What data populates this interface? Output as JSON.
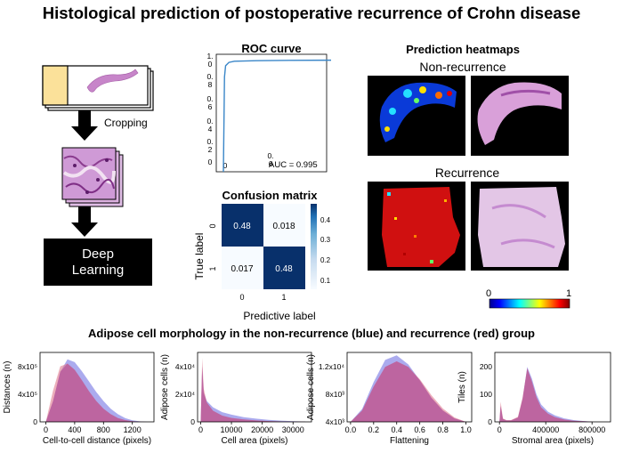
{
  "figure": {
    "title": "Histological prediction of postoperative recurrence of Crohn disease"
  },
  "pipeline": {
    "cropping_label": "Cropping",
    "model_label_line1": "Deep",
    "model_label_line2": "Learning"
  },
  "roc": {
    "title": "ROC curve",
    "auc_text": "AUC = 0.995",
    "y_ticks": [
      "1.\n0",
      "0.\n8",
      "0.\n6",
      "0.\n4",
      "0.\n2",
      "0"
    ],
    "x_ticks": [
      "0",
      "0.\n6"
    ]
  },
  "confusion": {
    "title": "Confusion matrix",
    "cells": [
      [
        "0.48",
        "0.018"
      ],
      [
        "0.017",
        "0.48"
      ]
    ],
    "row_labels": [
      "0",
      "1"
    ],
    "col_labels": [
      "0",
      "1"
    ],
    "ylabel": "True label",
    "xlabel": "Predictive label",
    "colorbar_ticks": [
      "0.4",
      "0.3",
      "0.2",
      "0.1"
    ]
  },
  "heatmaps": {
    "title": "Prediction heatmaps",
    "group1": "Non-recurrence",
    "group2": "Recurrence",
    "scale_min": "0",
    "scale_max": "1"
  },
  "morphology": {
    "title": "Adipose cell morphology in the non-recurrence (blue) and recurrence (red) group",
    "series_colors": {
      "non_recurrence": "#8f8fe8",
      "recurrence": "#e07a8e",
      "overlap": "#b3468f"
    }
  },
  "chart_data": [
    {
      "type": "line",
      "title": "ROC curve",
      "xlabel": "",
      "ylabel": "",
      "x": [
        0,
        0.01,
        0.02,
        0.05,
        0.1,
        0.3,
        0.6,
        1.0
      ],
      "y": [
        0,
        0.85,
        0.95,
        0.98,
        0.99,
        0.995,
        0.998,
        1.0
      ],
      "xlim": [
        0,
        1
      ],
      "ylim": [
        0,
        1
      ],
      "annotation": "AUC = 0.995",
      "color": "#3a86c8"
    },
    {
      "type": "heatmap",
      "title": "Confusion matrix",
      "xlabel": "Predictive label",
      "ylabel": "True label",
      "rows": [
        "0",
        "1"
      ],
      "cols": [
        "0",
        "1"
      ],
      "values": [
        [
          0.48,
          0.018
        ],
        [
          0.017,
          0.48
        ]
      ],
      "colormap": "Blues"
    },
    {
      "type": "area",
      "xlabel": "Cell-to-cell distance (pixels)",
      "ylabel": "Distances (n)",
      "x_ticks": [
        "0",
        "400",
        "800",
        "1200"
      ],
      "y_ticks": [
        "8x10⁵",
        "4x10⁵",
        "0"
      ],
      "xlim": [
        -80,
        1500
      ],
      "ylim": [
        0,
        1000000
      ],
      "series": [
        {
          "color": "#8f8fe8",
          "x": [
            0,
            100,
            200,
            300,
            400,
            500,
            600,
            700,
            800,
            900,
            1000,
            1100,
            1200,
            1300,
            1400
          ],
          "values": [
            0,
            300000,
            720000,
            900000,
            860000,
            730000,
            580000,
            430000,
            300000,
            190000,
            110000,
            55000,
            22000,
            8000,
            0
          ]
        },
        {
          "color": "#e07a8e",
          "x": [
            0,
            100,
            200,
            300,
            400,
            500,
            600,
            700,
            800,
            900,
            1000,
            1100,
            1200,
            1300,
            1400
          ],
          "values": [
            0,
            450000,
            800000,
            840000,
            750000,
            600000,
            440000,
            300000,
            190000,
            110000,
            55000,
            25000,
            9000,
            3000,
            0
          ]
        }
      ]
    },
    {
      "type": "area",
      "xlabel": "Cell area (pixels)",
      "ylabel": "Adipose cells (n)",
      "x_ticks": [
        "0",
        "10000",
        "20000",
        "30000"
      ],
      "y_ticks": [
        "4x10⁴",
        "2x10⁴",
        "0"
      ],
      "xlim": [
        -1000,
        36000
      ],
      "ylim": [
        0,
        50000
      ],
      "series": [
        {
          "color": "#8f8fe8",
          "x": [
            0,
            500,
            1000,
            2000,
            4000,
            7000,
            10000,
            14000,
            18000,
            22000,
            26000,
            30000,
            34000
          ],
          "values": [
            0,
            40000,
            21000,
            15000,
            10500,
            7000,
            5200,
            3400,
            2300,
            1500,
            900,
            500,
            250
          ]
        },
        {
          "color": "#e07a8e",
          "x": [
            0,
            500,
            1000,
            2000,
            4000,
            7000,
            10000,
            14000,
            18000,
            22000,
            26000,
            30000,
            34000
          ],
          "values": [
            0,
            46000,
            24000,
            14000,
            8000,
            4500,
            2800,
            1700,
            1000,
            600,
            350,
            200,
            100
          ]
        }
      ]
    },
    {
      "type": "area",
      "xlabel": "Flattening",
      "ylabel": "Adipose cells (n)",
      "x_ticks": [
        "0.0",
        "0.2",
        "0.4",
        "0.6",
        "0.8",
        "1.0"
      ],
      "y_ticks": [
        "1.2x10⁴",
        "8x10³",
        "4x10³"
      ],
      "xlim": [
        -0.03,
        1.05
      ],
      "ylim": [
        0,
        14000
      ],
      "series": [
        {
          "color": "#8f8fe8",
          "x": [
            0,
            0.1,
            0.2,
            0.3,
            0.4,
            0.5,
            0.6,
            0.7,
            0.8,
            0.9,
            1.0
          ],
          "values": [
            0,
            2600,
            8000,
            12500,
            13400,
            11600,
            8400,
            4900,
            2300,
            700,
            0
          ]
        },
        {
          "color": "#e07a8e",
          "x": [
            0,
            0.1,
            0.2,
            0.3,
            0.4,
            0.5,
            0.6,
            0.7,
            0.8,
            0.9,
            1.0
          ],
          "values": [
            0,
            2300,
            7100,
            11100,
            12200,
            11100,
            8600,
            5400,
            2700,
            900,
            0
          ]
        }
      ]
    },
    {
      "type": "area",
      "xlabel": "Stromal area (pixels)",
      "ylabel": "Tiles (n)",
      "x_ticks": [
        "0",
        "400000",
        "800000"
      ],
      "y_ticks": [
        "200",
        "100",
        "0"
      ],
      "xlim": [
        -40000,
        960000
      ],
      "ylim": [
        0,
        240
      ],
      "series": [
        {
          "color": "#8f8fe8",
          "x": [
            0,
            10000,
            30000,
            60000,
            100000,
            160000,
            200000,
            240000,
            280000,
            320000,
            360000,
            420000,
            480000,
            560000,
            640000,
            720000,
            800000
          ],
          "values": [
            0,
            55,
            10,
            5,
            5,
            15,
            80,
            190,
            150,
            95,
            60,
            35,
            22,
            12,
            6,
            3,
            1
          ]
        },
        {
          "color": "#e07a8e",
          "x": [
            0,
            10000,
            30000,
            60000,
            100000,
            160000,
            200000,
            240000,
            280000,
            320000,
            360000,
            420000,
            480000,
            560000,
            640000,
            720000,
            800000
          ],
          "values": [
            0,
            70,
            12,
            6,
            6,
            18,
            85,
            185,
            140,
            85,
            50,
            28,
            16,
            8,
            4,
            2,
            1
          ]
        }
      ]
    }
  ]
}
